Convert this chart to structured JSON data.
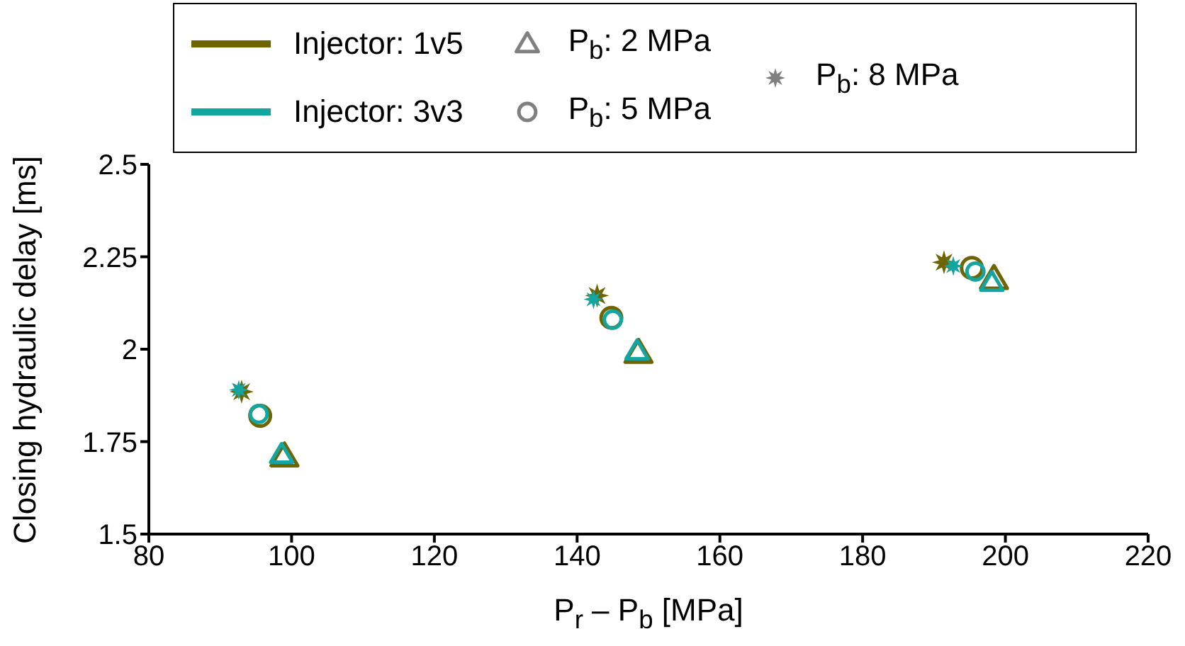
{
  "chart_data": {
    "type": "scatter",
    "xlabel": "P$_{r}$ – P$_{b}$ [MPa]",
    "ylabel": "Closing hydraulic delay [ms]",
    "xlim": [
      80,
      220
    ],
    "xticks": [
      80,
      100,
      120,
      140,
      160,
      180,
      200,
      220
    ],
    "ylim": [
      1.5,
      2.5
    ],
    "yticks": [
      1.5,
      1.75,
      2,
      2.25,
      2.5
    ],
    "legend": "top",
    "series": [
      {
        "type": "line",
        "name": "Injector: 1v5",
        "color": "#6e6400"
      },
      {
        "type": "line",
        "name": "Injector: 3v3",
        "color": "#14a5a0"
      },
      {
        "type": "scatter",
        "name": "P$_{b}$: 2 MPa",
        "color": "#808080",
        "marker": "triangle"
      },
      {
        "type": "scatter",
        "name": "P$_{b}$: 5 MPa",
        "color": "#808080",
        "marker": "circle"
      },
      {
        "type": "scatter",
        "name": "P$_{b}$: 8 MPa",
        "color": "#808080",
        "marker": "star"
      },
      {
        "color": "#6e6400",
        "marker": "triangle",
        "x": [
          99.0,
          148.6,
          198.4
        ],
        "values": [
          1.71,
          1.99,
          2.19
        ]
      },
      {
        "color": "#6e6400",
        "marker": "circle",
        "x": [
          95.6,
          144.8,
          195.3
        ],
        "values": [
          1.82,
          2.085,
          2.22
        ]
      },
      {
        "color": "#6e6400",
        "marker": "star",
        "x": [
          93.0,
          142.8,
          191.4
        ],
        "values": [
          1.885,
          2.145,
          2.235
        ]
      },
      {
        "color": "#14a5a0",
        "marker": "triangle",
        "x": [
          98.6,
          148.4,
          198.1
        ],
        "values": [
          1.715,
          1.995,
          2.18
        ]
      },
      {
        "color": "#14a5a0",
        "marker": "circle",
        "x": [
          95.4,
          145.0,
          195.8
        ],
        "values": [
          1.825,
          2.08,
          2.21
        ]
      },
      {
        "color": "#14a5a0",
        "marker": "star",
        "x": [
          92.6,
          142.3,
          192.7
        ],
        "values": [
          1.89,
          2.135,
          2.225
        ]
      }
    ]
  }
}
